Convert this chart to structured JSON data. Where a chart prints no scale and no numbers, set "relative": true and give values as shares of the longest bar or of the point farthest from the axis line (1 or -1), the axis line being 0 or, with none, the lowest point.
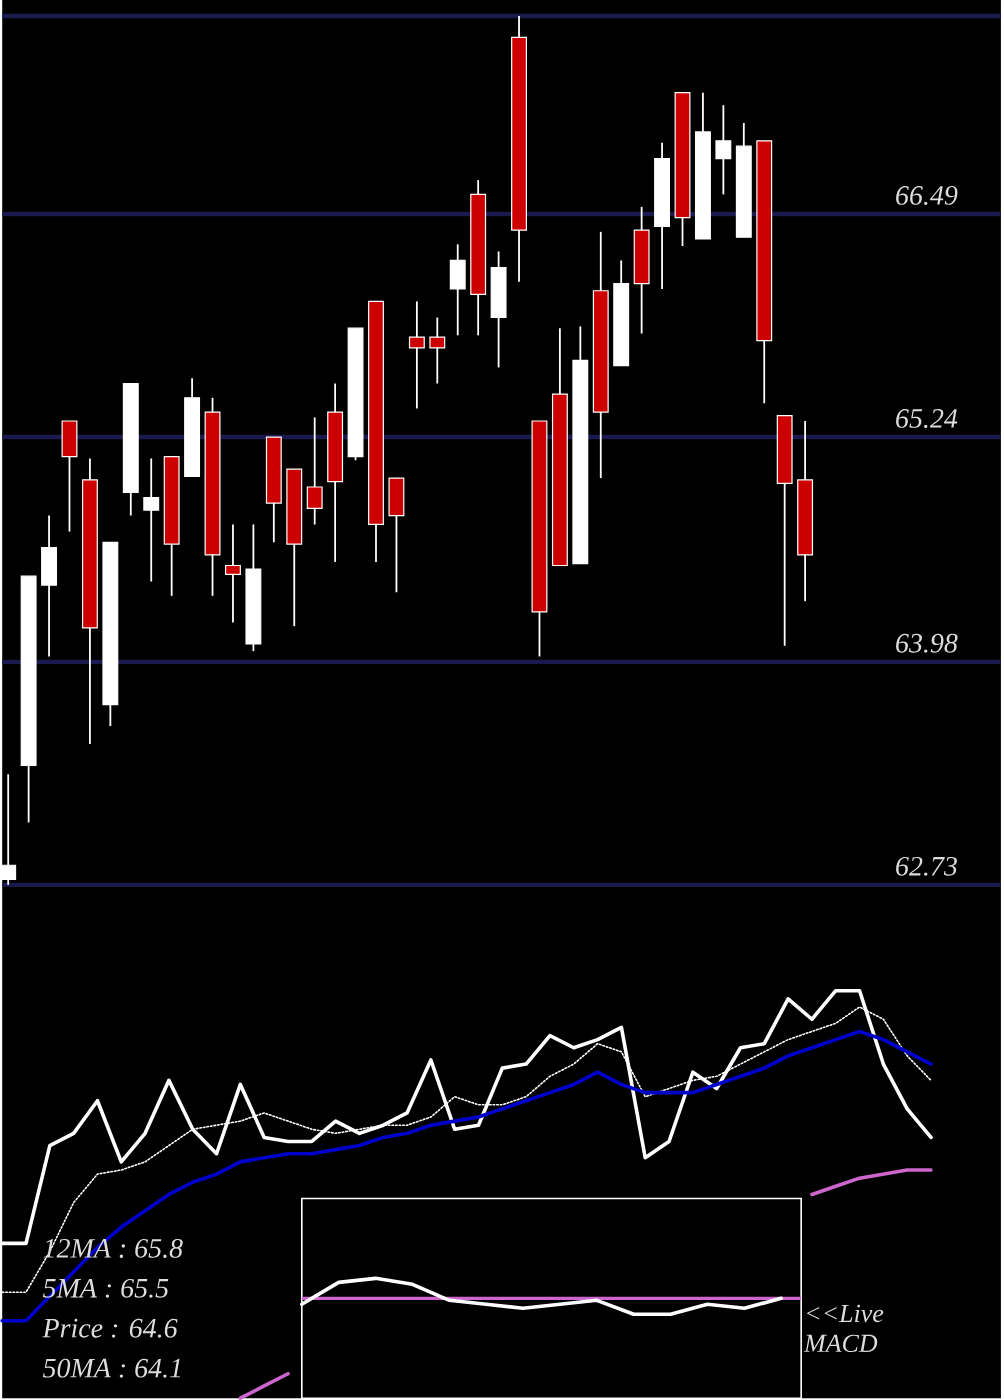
{
  "chart_data": [
    {
      "type": "candlestick",
      "categories": [
        null,
        null,
        null,
        null,
        null,
        null,
        null,
        null,
        null,
        null,
        null,
        null,
        null,
        null,
        null,
        null,
        null,
        null,
        null,
        null,
        null,
        null,
        null,
        null,
        null,
        null,
        null,
        null,
        null,
        null,
        null,
        null,
        null,
        null,
        null,
        null,
        null,
        null,
        null,
        null
      ],
      "ohlc": [
        [
          62.76,
          63.35,
          62.73,
          62.84
        ],
        [
          63.4,
          64.46,
          63.08,
          64.46
        ],
        [
          64.41,
          64.8,
          64.01,
          64.62
        ],
        [
          65.33,
          65.33,
          64.71,
          65.13
        ],
        [
          65.0,
          65.12,
          63.52,
          64.17
        ],
        [
          63.74,
          64.65,
          63.62,
          64.65
        ],
        [
          64.93,
          65.54,
          64.8,
          65.54
        ],
        [
          64.83,
          65.12,
          64.43,
          64.9
        ],
        [
          65.13,
          65.13,
          64.35,
          64.64
        ],
        [
          65.02,
          65.57,
          65.02,
          65.46
        ],
        [
          65.38,
          65.46,
          64.35,
          64.58
        ],
        [
          64.52,
          64.75,
          64.2,
          64.47
        ],
        [
          64.08,
          64.75,
          64.04,
          64.5
        ],
        [
          65.24,
          65.24,
          64.65,
          64.87
        ],
        [
          65.06,
          65.06,
          64.18,
          64.64
        ],
        [
          64.96,
          65.35,
          64.75,
          64.84
        ],
        [
          65.38,
          65.54,
          64.54,
          64.99
        ],
        [
          65.13,
          65.85,
          65.11,
          65.85
        ],
        [
          66.0,
          66.0,
          64.54,
          64.75
        ],
        [
          65.01,
          65.01,
          64.37,
          64.8
        ],
        [
          65.8,
          66.0,
          65.4,
          65.74
        ],
        [
          65.8,
          65.91,
          65.54,
          65.74
        ],
        [
          66.07,
          66.32,
          65.81,
          66.23
        ],
        [
          66.6,
          66.68,
          65.81,
          66.04
        ],
        [
          65.91,
          66.28,
          65.63,
          66.19
        ],
        [
          67.48,
          67.6,
          66.11,
          66.4
        ],
        [
          65.33,
          65.33,
          64.01,
          64.26
        ],
        [
          65.48,
          65.85,
          64.52,
          64.52
        ],
        [
          64.53,
          65.86,
          64.53,
          65.67
        ],
        [
          66.06,
          66.39,
          65.01,
          65.38
        ],
        [
          65.64,
          66.23,
          65.64,
          66.1
        ],
        [
          66.4,
          66.53,
          65.82,
          66.1
        ],
        [
          66.42,
          66.89,
          66.07,
          66.8
        ],
        [
          67.17,
          67.17,
          66.31,
          66.47
        ],
        [
          66.35,
          67.17,
          66.35,
          66.95
        ],
        [
          66.8,
          67.1,
          66.6,
          66.9
        ],
        [
          66.36,
          67.0,
          66.36,
          66.87
        ],
        [
          66.9,
          66.9,
          65.43,
          65.78
        ],
        [
          65.36,
          65.36,
          64.07,
          64.98
        ],
        [
          65.0,
          65.33,
          64.32,
          64.58
        ]
      ],
      "colors": [
        "#ffffff",
        "#ffffff",
        "#ffffff",
        "#cc0000",
        "#cc0000",
        "#ffffff",
        "#ffffff",
        "#ffffff",
        "#cc0000",
        "#ffffff",
        "#cc0000",
        "#cc0000",
        "#ffffff",
        "#cc0000",
        "#cc0000",
        "#cc0000",
        "#cc0000",
        "#ffffff",
        "#cc0000",
        "#cc0000",
        "#cc0000",
        "#cc0000",
        "#ffffff",
        "#cc0000",
        "#ffffff",
        "#cc0000",
        "#cc0000",
        "#cc0000",
        "#ffffff",
        "#cc0000",
        "#ffffff",
        "#cc0000",
        "#ffffff",
        "#cc0000",
        "#ffffff",
        "#ffffff",
        "#ffffff",
        "#cc0000",
        "#cc0000",
        "#cc0000"
      ],
      "ylim": [
        62.73,
        67.6
      ],
      "yticks": [
        62.73,
        63.98,
        65.24,
        66.49,
        {
          "value": 67.6,
          "label": null
        }
      ],
      "grid": "y",
      "tick_labels": "y"
    },
    {
      "type": "line",
      "relative": true,
      "tick_labels": false,
      "categories": [
        null,
        null,
        null,
        null,
        null,
        null,
        null,
        null,
        null,
        null,
        null,
        null,
        null,
        null,
        null,
        null,
        null,
        null,
        null,
        null,
        null,
        null,
        null,
        null,
        null,
        null,
        null,
        null,
        null,
        null,
        null,
        null,
        null,
        null,
        null,
        null,
        null,
        null,
        null,
        null
      ],
      "series": [
        {
          "color": "#ffffff",
          "line_style": "solid",
          "values": [
            0.38,
            0.38,
            0.62,
            0.65,
            0.73,
            0.58,
            0.65,
            0.78,
            0.66,
            0.6,
            0.77,
            0.64,
            0.63,
            0.63,
            0.68,
            0.65,
            0.67,
            0.7,
            0.83,
            0.66,
            0.67,
            0.81,
            0.82,
            0.89,
            0.86,
            0.88,
            0.91,
            0.59,
            0.63,
            0.8,
            0.76,
            0.86,
            0.87,
            0.98,
            0.93,
            1.0,
            1.0,
            0.82,
            0.71,
            0.64
          ]
        },
        {
          "color": "#ffffff",
          "line_style": "dotted",
          "values": [
            0.26,
            0.26,
            0.36,
            0.48,
            0.55,
            0.56,
            0.58,
            0.62,
            0.66,
            0.67,
            0.68,
            0.7,
            0.68,
            0.66,
            0.65,
            0.66,
            0.67,
            0.67,
            0.69,
            0.74,
            0.72,
            0.72,
            0.74,
            0.79,
            0.82,
            0.87,
            0.85,
            0.74,
            0.76,
            0.78,
            0.79,
            0.82,
            0.85,
            0.88,
            0.9,
            0.92,
            0.96,
            0.93,
            0.84,
            0.78
          ]
        },
        {
          "color": "#0000cc",
          "line_style": "solid",
          "values": [
            0.19,
            0.19,
            0.25,
            0.31,
            0.37,
            0.42,
            0.46,
            0.5,
            0.53,
            0.55,
            0.58,
            0.59,
            0.6,
            0.6,
            0.61,
            0.62,
            0.64,
            0.65,
            0.67,
            0.68,
            0.69,
            0.71,
            0.73,
            0.75,
            0.77,
            0.8,
            0.77,
            0.75,
            0.75,
            0.75,
            0.77,
            0.79,
            0.81,
            0.84,
            0.86,
            0.88,
            0.9,
            0.88,
            0.85,
            0.82
          ]
        },
        {
          "color": "#cc66cc",
          "line_style": "solid",
          "values": [
            null,
            null,
            null,
            null,
            null,
            null,
            null,
            null,
            null,
            null,
            0.0,
            0.03,
            0.06,
            null,
            null,
            null,
            null,
            null,
            null,
            null,
            null,
            null,
            null,
            null,
            null,
            null,
            null,
            null,
            null,
            null,
            null,
            null,
            null,
            null,
            0.5,
            0.52,
            0.54,
            0.55,
            0.56,
            0.56
          ]
        }
      ],
      "annotations": [
        "12MA : 65.8",
        "5MA : 65.5",
        "Price   : 64.6",
        "50MA : 64.1"
      ]
    },
    {
      "type": "line",
      "relative": true,
      "tick_labels": false,
      "categories": [
        null,
        null,
        null,
        null,
        null,
        null,
        null,
        null,
        null,
        null,
        null,
        null,
        null,
        null
      ],
      "series": [
        {
          "color": "#ffffff",
          "line_style": "solid",
          "values": [
            -0.3,
            0.8,
            1.0,
            0.7,
            -0.1,
            -0.3,
            -0.5,
            -0.3,
            -0.1,
            -0.8,
            -0.8,
            -0.3,
            -0.5,
            0.0
          ]
        }
      ],
      "ref_lines": [
        {
          "axis": "y",
          "value": 0,
          "color": "#cc66cc"
        }
      ],
      "annotations": [
        "<<Live MACD"
      ]
    }
  ]
}
